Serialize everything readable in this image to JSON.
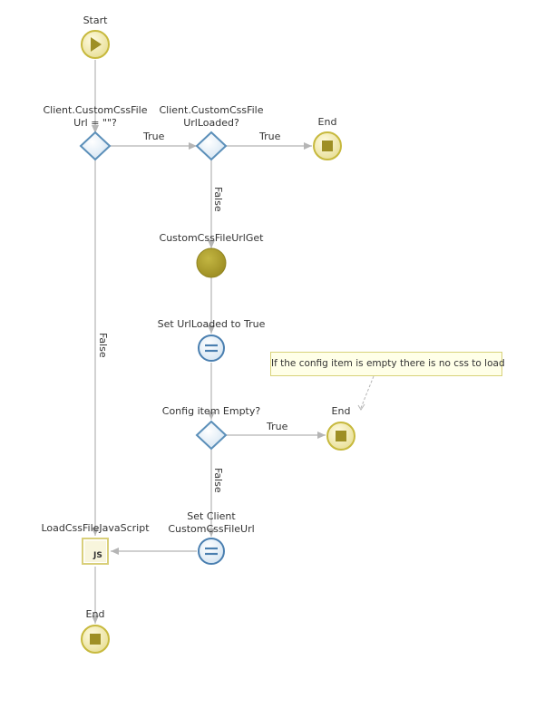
{
  "nodes": {
    "start": "Start",
    "check_url_empty": "Client.CustomCssFile\nUrl = \"\"?",
    "check_loaded": "Client.CustomCssFile\nUrlLoaded?",
    "end_top": "End",
    "server_action": "CustomCssFileUrlGet",
    "assign_loaded": "Set UrlLoaded to True",
    "check_config_empty": "Config item Empty?",
    "end_mid": "End",
    "assign_url": "Set Client\nCustomCssFileUrl",
    "js_node": "LoadCssFileJavaScript",
    "js_badge": "JS",
    "end_bottom": "End"
  },
  "edges": {
    "true_1": "True",
    "true_2": "True",
    "false_loaded": "False",
    "false_url": "False",
    "true_config": "True",
    "false_config": "False"
  },
  "comment": "If the config item is empty there is no css to load",
  "colors": {
    "line": "#b5b5b5",
    "start_end": "#c7b93d",
    "decision": "#5b8fb9",
    "server": "#9e8f24",
    "assign": "#4a7fb0",
    "js_box": "#e8e2a6"
  }
}
